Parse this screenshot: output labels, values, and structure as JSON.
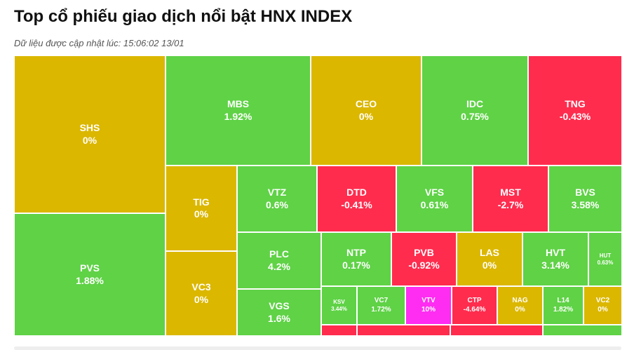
{
  "header": {
    "title": "Top cổ phiếu giao dịch nổi bật HNX INDEX",
    "subtitle": "Dữ liệu được cập nhật lúc: 15:06:02 13/01"
  },
  "colors": {
    "up": "#5fd246",
    "flat": "#dbb700",
    "down": "#ff2c4e",
    "ceiling": "#ff2cf2"
  },
  "chart_data": {
    "type": "treemap",
    "tiles": [
      {
        "symbol": "SHS",
        "change": "0%",
        "status": "flat"
      },
      {
        "symbol": "PVS",
        "change": "1.88%",
        "status": "up"
      },
      {
        "symbol": "MBS",
        "change": "1.92%",
        "status": "up"
      },
      {
        "symbol": "CEO",
        "change": "0%",
        "status": "flat"
      },
      {
        "symbol": "IDC",
        "change": "0.75%",
        "status": "up"
      },
      {
        "symbol": "TNG",
        "change": "-0.43%",
        "status": "down"
      },
      {
        "symbol": "TIG",
        "change": "0%",
        "status": "flat"
      },
      {
        "symbol": "VC3",
        "change": "0%",
        "status": "flat"
      },
      {
        "symbol": "VTZ",
        "change": "0.6%",
        "status": "up"
      },
      {
        "symbol": "PLC",
        "change": "4.2%",
        "status": "up"
      },
      {
        "symbol": "VGS",
        "change": "1.6%",
        "status": "up"
      },
      {
        "symbol": "DTD",
        "change": "-0.41%",
        "status": "down"
      },
      {
        "symbol": "VFS",
        "change": "0.61%",
        "status": "up"
      },
      {
        "symbol": "MST",
        "change": "-2.7%",
        "status": "down"
      },
      {
        "symbol": "BVS",
        "change": "3.58%",
        "status": "up"
      },
      {
        "symbol": "NTP",
        "change": "0.17%",
        "status": "up"
      },
      {
        "symbol": "PVB",
        "change": "-0.92%",
        "status": "down"
      },
      {
        "symbol": "LAS",
        "change": "0%",
        "status": "flat"
      },
      {
        "symbol": "HVT",
        "change": "3.14%",
        "status": "up"
      },
      {
        "symbol": "HUT",
        "change": "0.63%",
        "status": "up"
      },
      {
        "symbol": "KSV",
        "change": "3.44%",
        "status": "up"
      },
      {
        "symbol": "VC7",
        "change": "1.72%",
        "status": "up"
      },
      {
        "symbol": "VTV",
        "change": "10%",
        "status": "ceiling"
      },
      {
        "symbol": "CTP",
        "change": "-4.64%",
        "status": "down"
      },
      {
        "symbol": "NAG",
        "change": "0%",
        "status": "flat"
      },
      {
        "symbol": "L14",
        "change": "1.82%",
        "status": "up"
      },
      {
        "symbol": "VC2",
        "change": "0%",
        "status": "flat"
      },
      {
        "symbol": "",
        "change": "",
        "status": "down"
      },
      {
        "symbol": "",
        "change": "",
        "status": "down"
      },
      {
        "symbol": "",
        "change": "",
        "status": "down"
      },
      {
        "symbol": "",
        "change": "",
        "status": "up"
      }
    ]
  }
}
